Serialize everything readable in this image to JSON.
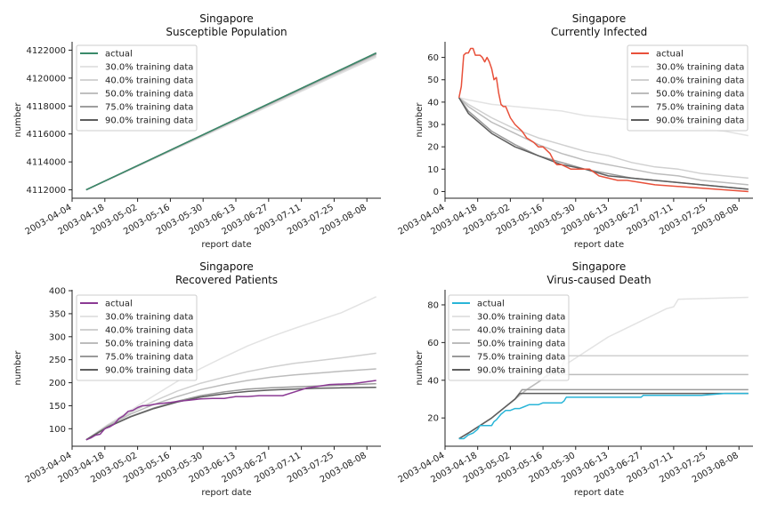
{
  "chart_data": [
    {
      "type": "line",
      "title": "Singapore\nSusceptible Population",
      "title_lines": [
        "Singapore",
        "Susceptible Population"
      ],
      "xlabel": "report date",
      "ylabel": "number",
      "x_ticks": [
        "2003-04-04",
        "2003-04-18",
        "2003-05-02",
        "2003-05-16",
        "2003-05-30",
        "2003-06-13",
        "2003-06-27",
        "2003-07-11",
        "2003-07-25",
        "2003-08-08"
      ],
      "y_ticks": [
        4112000,
        4114000,
        4116000,
        4118000,
        4120000,
        4122000
      ],
      "ylim": [
        4111400,
        4122600
      ],
      "xlim_days": [
        0,
        132
      ],
      "legend_position": "upper-left",
      "series": [
        {
          "name": "actual",
          "color": "#3a8a6a",
          "x_days": [
            6,
            130
          ],
          "values": [
            4112000,
            4121800
          ]
        },
        {
          "name": "30.0% training data",
          "color": "#e3e3e3",
          "x_days": [
            6,
            130
          ],
          "values": [
            4112000,
            4121500
          ]
        },
        {
          "name": "40.0% training data",
          "color": "#d3d3d3",
          "x_days": [
            6,
            130
          ],
          "values": [
            4112000,
            4121600
          ]
        },
        {
          "name": "50.0% training data",
          "color": "#c0c0c0",
          "x_days": [
            6,
            130
          ],
          "values": [
            4112000,
            4121700
          ]
        },
        {
          "name": "75.0% training data",
          "color": "#9e9e9e",
          "x_days": [
            6,
            130
          ],
          "values": [
            4112000,
            4121750
          ]
        },
        {
          "name": "90.0% training data",
          "color": "#5e5e5e",
          "x_days": [
            6,
            130
          ],
          "values": [
            4112000,
            4121800
          ]
        }
      ]
    },
    {
      "type": "line",
      "title_lines": [
        "Singapore",
        "Currently Infected"
      ],
      "xlabel": "report date",
      "ylabel": "number",
      "x_ticks": [
        "2003-04-04",
        "2003-04-18",
        "2003-05-02",
        "2003-05-16",
        "2003-05-30",
        "2003-06-13",
        "2003-06-27",
        "2003-07-11",
        "2003-07-25",
        "2003-08-08"
      ],
      "y_ticks": [
        0,
        10,
        20,
        30,
        40,
        50,
        60
      ],
      "ylim": [
        -3,
        67
      ],
      "xlim_days": [
        0,
        132
      ],
      "legend_position": "upper-right",
      "series": [
        {
          "name": "actual",
          "color": "#e8503a",
          "x_days": [
            6,
            7,
            8,
            9,
            10,
            11,
            12,
            13,
            14,
            15,
            16,
            17,
            18,
            19,
            20,
            21,
            22,
            23,
            24,
            25,
            26,
            28,
            30,
            33,
            35,
            38,
            40,
            42,
            45,
            47,
            48,
            50,
            54,
            58,
            62,
            66,
            70,
            74,
            78,
            90,
            130
          ],
          "values": [
            42,
            47,
            61,
            62,
            62,
            64,
            64,
            61,
            61,
            61,
            60,
            58,
            60,
            58,
            55,
            50,
            51,
            44,
            39,
            38,
            38,
            33,
            30,
            27,
            24,
            22,
            20,
            20,
            17,
            13,
            12,
            12,
            10,
            10,
            10,
            7,
            6,
            5,
            5,
            3,
            0
          ]
        },
        {
          "name": "30.0% training data",
          "color": "#e3e3e3",
          "x_days": [
            6,
            10,
            20,
            30,
            40,
            50,
            60,
            70,
            80,
            90,
            100,
            110,
            120,
            130
          ],
          "values": [
            42,
            41,
            39,
            38,
            37,
            36,
            34,
            33,
            32,
            31,
            29,
            28,
            27,
            25
          ]
        },
        {
          "name": "40.0% training data",
          "color": "#d0d0d0",
          "x_days": [
            6,
            10,
            20,
            30,
            40,
            50,
            60,
            70,
            80,
            90,
            100,
            110,
            120,
            130
          ],
          "values": [
            42,
            39,
            33,
            28,
            24,
            21,
            18,
            16,
            13,
            11,
            10,
            8,
            7,
            6
          ]
        },
        {
          "name": "50.0% training data",
          "color": "#bcbcbc",
          "x_days": [
            6,
            10,
            20,
            30,
            40,
            50,
            60,
            70,
            80,
            90,
            100,
            110,
            120,
            130
          ],
          "values": [
            42,
            38,
            31,
            26,
            21,
            17,
            14,
            12,
            10,
            8,
            7,
            5,
            4,
            3
          ]
        },
        {
          "name": "75.0% training data",
          "color": "#9a9a9a",
          "x_days": [
            6,
            10,
            20,
            30,
            40,
            50,
            60,
            70,
            80,
            90,
            100,
            110,
            120,
            130
          ],
          "values": [
            42,
            36,
            27,
            21,
            16,
            13,
            10,
            8,
            6,
            5,
            4,
            3,
            2,
            1
          ]
        },
        {
          "name": "90.0% training data",
          "color": "#5e5e5e",
          "x_days": [
            6,
            10,
            20,
            30,
            40,
            50,
            60,
            70,
            80,
            90,
            100,
            110,
            120,
            130
          ],
          "values": [
            42,
            35,
            26,
            20,
            16,
            12,
            10,
            7,
            6,
            5,
            4,
            3,
            2,
            1
          ]
        }
      ]
    },
    {
      "type": "line",
      "title_lines": [
        "Singapore",
        "Recovered Patients"
      ],
      "xlabel": "report date",
      "ylabel": "number",
      "x_ticks": [
        "2003-04-04",
        "2003-04-18",
        "2003-05-02",
        "2003-05-16",
        "2003-05-30",
        "2003-06-13",
        "2003-06-27",
        "2003-07-11",
        "2003-07-25",
        "2003-08-08"
      ],
      "y_ticks": [
        100,
        150,
        200,
        250,
        300,
        350,
        400
      ],
      "ylim": [
        62,
        402
      ],
      "xlim_days": [
        0,
        132
      ],
      "legend_position": "upper-left",
      "series": [
        {
          "name": "actual",
          "color": "#8b3a94",
          "x_days": [
            6,
            8,
            10,
            12,
            14,
            16,
            18,
            20,
            22,
            24,
            26,
            28,
            30,
            32,
            35,
            38,
            42,
            46,
            50,
            55,
            60,
            65,
            70,
            75,
            80,
            90,
            100,
            110,
            120,
            130
          ],
          "values": [
            76,
            80,
            86,
            88,
            100,
            104,
            110,
            122,
            128,
            138,
            140,
            146,
            150,
            150,
            153,
            155,
            157,
            160,
            162,
            165,
            166,
            166,
            170,
            170,
            172,
            172,
            188,
            196,
            198,
            205
          ]
        },
        {
          "name": "30.0% training data",
          "color": "#e3e3e3",
          "x_days": [
            6,
            15,
            25,
            35,
            45,
            55,
            65,
            75,
            85,
            95,
            105,
            115,
            130
          ],
          "values": [
            76,
            108,
            140,
            172,
            203,
            231,
            256,
            280,
            300,
            318,
            335,
            352,
            387
          ]
        },
        {
          "name": "40.0% training data",
          "color": "#d0d0d0",
          "x_days": [
            6,
            15,
            25,
            35,
            45,
            55,
            65,
            75,
            85,
            95,
            105,
            115,
            130
          ],
          "values": [
            76,
            107,
            136,
            160,
            182,
            199,
            212,
            224,
            234,
            242,
            248,
            254,
            264
          ]
        },
        {
          "name": "50.0% training data",
          "color": "#bcbcbc",
          "x_days": [
            6,
            15,
            25,
            35,
            45,
            55,
            65,
            75,
            85,
            95,
            105,
            115,
            130
          ],
          "values": [
            76,
            106,
            132,
            153,
            170,
            185,
            196,
            205,
            212,
            217,
            221,
            225,
            230
          ]
        },
        {
          "name": "75.0% training data",
          "color": "#9a9a9a",
          "x_days": [
            6,
            15,
            25,
            35,
            45,
            55,
            65,
            75,
            85,
            95,
            105,
            115,
            130
          ],
          "values": [
            76,
            104,
            127,
            145,
            160,
            172,
            180,
            186,
            189,
            191,
            193,
            195,
            198
          ]
        },
        {
          "name": "90.0% training data",
          "color": "#5e5e5e",
          "x_days": [
            6,
            15,
            25,
            35,
            45,
            55,
            65,
            75,
            85,
            95,
            105,
            115,
            130
          ],
          "values": [
            76,
            103,
            126,
            144,
            158,
            169,
            176,
            181,
            184,
            186,
            188,
            189,
            190
          ]
        }
      ]
    },
    {
      "type": "line",
      "title_lines": [
        "Singapore",
        "Virus-caused Death"
      ],
      "xlabel": "report date",
      "ylabel": "number",
      "x_ticks": [
        "2003-04-04",
        "2003-04-18",
        "2003-05-02",
        "2003-05-16",
        "2003-05-30",
        "2003-06-13",
        "2003-06-27",
        "2003-07-11",
        "2003-07-25",
        "2003-08-08"
      ],
      "y_ticks": [
        20,
        40,
        60,
        80
      ],
      "ylim": [
        5,
        88
      ],
      "xlim_days": [
        0,
        132
      ],
      "legend_position": "upper-left",
      "series": [
        {
          "name": "actual",
          "color": "#29b5d8",
          "x_days": [
            6,
            8,
            10,
            12,
            14,
            15,
            16,
            18,
            20,
            21,
            22,
            24,
            26,
            28,
            30,
            32,
            34,
            36,
            38,
            40,
            42,
            44,
            46,
            48,
            50,
            51,
            52,
            60,
            70,
            80,
            84,
            85,
            90,
            100,
            110,
            120,
            130
          ],
          "values": [
            9,
            9,
            11,
            12,
            14,
            16,
            16,
            16,
            16,
            18,
            19,
            22,
            24,
            24,
            25,
            25,
            26,
            27,
            27,
            27,
            28,
            28,
            28,
            28,
            28,
            29,
            31,
            31,
            31,
            31,
            31,
            32,
            32,
            32,
            32,
            33,
            33
          ]
        },
        {
          "name": "30.0% training data",
          "color": "#e3e3e3",
          "x_days": [
            6,
            10,
            15,
            20,
            25,
            30,
            35,
            40,
            45,
            50,
            55,
            60,
            65,
            70,
            75,
            80,
            85,
            90,
            95,
            98,
            100,
            130
          ],
          "values": [
            9,
            12,
            16,
            20,
            25,
            30,
            35,
            39,
            43,
            47,
            51,
            55,
            59,
            63,
            66,
            69,
            72,
            75,
            78,
            79,
            83,
            84
          ]
        },
        {
          "name": "40.0% training data",
          "color": "#d0d0d0",
          "x_days": [
            6,
            10,
            15,
            20,
            25,
            30,
            35,
            40,
            45,
            50,
            52,
            130
          ],
          "values": [
            9,
            12,
            16,
            20,
            25,
            30,
            35,
            39,
            43,
            47,
            53,
            53
          ]
        },
        {
          "name": "50.0% training data",
          "color": "#bcbcbc",
          "x_days": [
            6,
            10,
            15,
            20,
            25,
            30,
            35,
            40,
            44,
            130
          ],
          "values": [
            9,
            12,
            16,
            20,
            25,
            30,
            35,
            39,
            43,
            43
          ]
        },
        {
          "name": "75.0% training data",
          "color": "#9a9a9a",
          "x_days": [
            6,
            10,
            15,
            20,
            25,
            30,
            33,
            130
          ],
          "values": [
            9,
            12,
            16,
            20,
            25,
            30,
            35,
            35
          ]
        },
        {
          "name": "90.0% training data",
          "color": "#5e5e5e",
          "x_days": [
            6,
            10,
            15,
            20,
            25,
            30,
            32,
            130
          ],
          "values": [
            9,
            12,
            16,
            20,
            25,
            30,
            33,
            33
          ]
        }
      ]
    }
  ]
}
